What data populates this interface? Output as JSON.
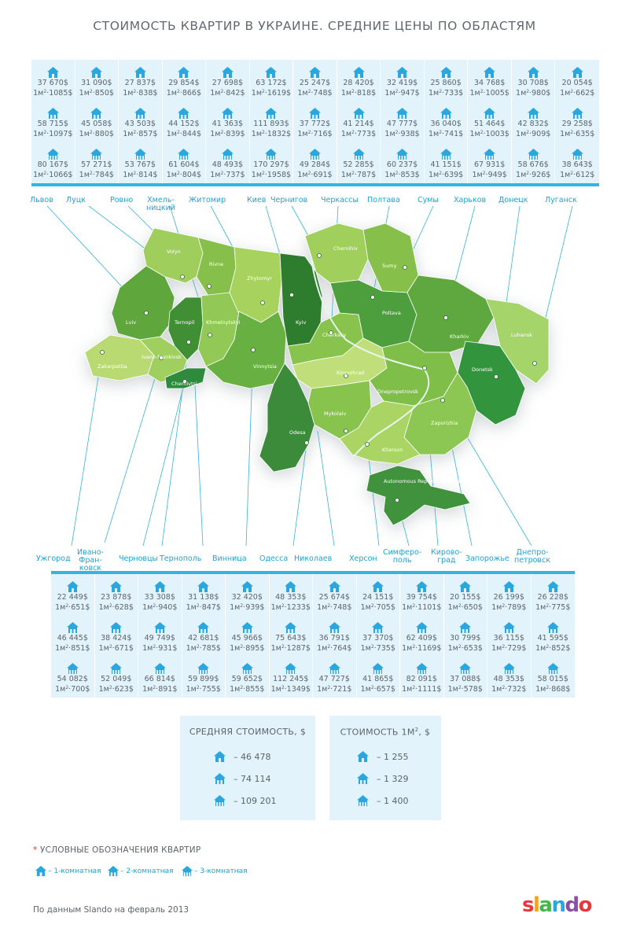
{
  "title": "СТОИМОСТЬ КВАРТИР В УКРАИНЕ. СРЕДНИЕ ЦЕНЫ ПО ОБЛАСТЯМ",
  "m2_prefix": "1м",
  "top_regions": [
    {
      "name": "Львов",
      "rooms": [
        {
          "price": "37 670$",
          "m2": "1085$"
        },
        {
          "price": "58 715$",
          "m2": "1097$"
        },
        {
          "price": "80 167$",
          "m2": "1066$"
        }
      ]
    },
    {
      "name": "Луцк",
      "rooms": [
        {
          "price": "31 090$",
          "m2": "850$"
        },
        {
          "price": "45 058$",
          "m2": "880$"
        },
        {
          "price": "57 271$",
          "m2": "784$"
        }
      ]
    },
    {
      "name": "Ровно",
      "rooms": [
        {
          "price": "27 837$",
          "m2": "838$"
        },
        {
          "price": "43 503$",
          "m2": "857$"
        },
        {
          "price": "53 767$",
          "m2": "814$"
        }
      ]
    },
    {
      "name": "Хмель-\nницкий",
      "rooms": [
        {
          "price": "29 854$",
          "m2": "866$"
        },
        {
          "price": "44 152$",
          "m2": "844$"
        },
        {
          "price": "61 604$",
          "m2": "804$"
        }
      ]
    },
    {
      "name": "Житомир",
      "rooms": [
        {
          "price": "27 698$",
          "m2": "842$"
        },
        {
          "price": "41 363$",
          "m2": "839$"
        },
        {
          "price": "48 493$",
          "m2": "737$"
        }
      ]
    },
    {
      "name": "Киев",
      "rooms": [
        {
          "price": "63 172$",
          "m2": "1619$"
        },
        {
          "price": "111 893$",
          "m2": "1832$"
        },
        {
          "price": "170 297$",
          "m2": "1958$"
        }
      ]
    },
    {
      "name": "Чернигов",
      "rooms": [
        {
          "price": "25 247$",
          "m2": "748$"
        },
        {
          "price": "37 772$",
          "m2": "716$"
        },
        {
          "price": "49 284$",
          "m2": "691$"
        }
      ]
    },
    {
      "name": "Черкассы",
      "rooms": [
        {
          "price": "28 420$",
          "m2": "818$"
        },
        {
          "price": "41 214$",
          "m2": "773$"
        },
        {
          "price": "52 285$",
          "m2": "787$"
        }
      ]
    },
    {
      "name": "Полтава",
      "rooms": [
        {
          "price": "32 419$",
          "m2": "947$"
        },
        {
          "price": "47 777$",
          "m2": "938$"
        },
        {
          "price": "60 237$",
          "m2": "853$"
        }
      ]
    },
    {
      "name": "Сумы",
      "rooms": [
        {
          "price": "25 860$",
          "m2": "733$"
        },
        {
          "price": "36 040$",
          "m2": "741$"
        },
        {
          "price": "41 151$",
          "m2": "639$"
        }
      ]
    },
    {
      "name": "Харьков",
      "rooms": [
        {
          "price": "34 768$",
          "m2": "1005$"
        },
        {
          "price": "51 464$",
          "m2": "1003$"
        },
        {
          "price": "67 931$",
          "m2": "949$"
        }
      ]
    },
    {
      "name": "Донецк",
      "rooms": [
        {
          "price": "30 708$",
          "m2": "980$"
        },
        {
          "price": "42 832$",
          "m2": "909$"
        },
        {
          "price": "58 676$",
          "m2": "926$"
        }
      ]
    },
    {
      "name": "Луганск",
      "rooms": [
        {
          "price": "20 054$",
          "m2": "662$"
        },
        {
          "price": "29 258$",
          "m2": "635$"
        },
        {
          "price": "38 643$",
          "m2": "612$"
        }
      ]
    }
  ],
  "bottom_regions": [
    {
      "name": "Ужгород",
      "rooms": [
        {
          "price": "22 449$",
          "m2": "651$"
        },
        {
          "price": "46 445$",
          "m2": "851$"
        },
        {
          "price": "54 082$",
          "m2": "700$"
        }
      ]
    },
    {
      "name": "Ивано-\nФран-\nковск",
      "rooms": [
        {
          "price": "23 878$",
          "m2": "628$"
        },
        {
          "price": "38 424$",
          "m2": "671$"
        },
        {
          "price": "52 049$",
          "m2": "623$"
        }
      ]
    },
    {
      "name": "Черновцы",
      "rooms": [
        {
          "price": "33 308$",
          "m2": "940$"
        },
        {
          "price": "49 749$",
          "m2": "931$"
        },
        {
          "price": "66 814$",
          "m2": "891$"
        }
      ]
    },
    {
      "name": "Тернополь",
      "rooms": [
        {
          "price": "31 138$",
          "m2": "847$"
        },
        {
          "price": "42 681$",
          "m2": "785$"
        },
        {
          "price": "59 899$",
          "m2": "755$"
        }
      ]
    },
    {
      "name": "Винница",
      "rooms": [
        {
          "price": "32 420$",
          "m2": "939$"
        },
        {
          "price": "45 966$",
          "m2": "895$"
        },
        {
          "price": "59 652$",
          "m2": "855$"
        }
      ]
    },
    {
      "name": "Одесса",
      "rooms": [
        {
          "price": "48 353$",
          "m2": "1233$"
        },
        {
          "price": "75 643$",
          "m2": "1287$"
        },
        {
          "price": "112 245$",
          "m2": "1349$"
        }
      ]
    },
    {
      "name": "Николаев",
      "rooms": [
        {
          "price": "25 674$",
          "m2": "748$"
        },
        {
          "price": "36 791$",
          "m2": "764$"
        },
        {
          "price": "47 727$",
          "m2": "721$"
        }
      ]
    },
    {
      "name": "Херсон",
      "rooms": [
        {
          "price": "24 151$",
          "m2": "705$"
        },
        {
          "price": "37 370$",
          "m2": "735$"
        },
        {
          "price": "41 865$",
          "m2": "657$"
        }
      ]
    },
    {
      "name": "Симферо-\nполь",
      "rooms": [
        {
          "price": "39 754$",
          "m2": "1101$"
        },
        {
          "price": "62 409$",
          "m2": "1169$"
        },
        {
          "price": "82 091$",
          "m2": "1111$"
        }
      ]
    },
    {
      "name": "Кирово-\nград",
      "rooms": [
        {
          "price": "20 155$",
          "m2": "650$"
        },
        {
          "price": "30 799$",
          "m2": "653$"
        },
        {
          "price": "37 088$",
          "m2": "578$"
        }
      ]
    },
    {
      "name": "Запорожье",
      "rooms": [
        {
          "price": "26 199$",
          "m2": "789$"
        },
        {
          "price": "36 115$",
          "m2": "729$"
        },
        {
          "price": "48 353$",
          "m2": "732$"
        }
      ]
    },
    {
      "name": "Днепро-\nпетровск",
      "rooms": [
        {
          "price": "26 228$",
          "m2": "775$"
        },
        {
          "price": "41 595$",
          "m2": "852$"
        },
        {
          "price": "58 015$",
          "m2": "868$"
        }
      ]
    }
  ],
  "map_labels": [
    "Volyn",
    "Rivne",
    "Zhytomyr",
    "Chernihiv",
    "Lviv",
    "Ternopil",
    "Khmelnytskyi",
    "Vinnytsia",
    "Kyiv",
    "Poltava",
    "Kharkiv",
    "Luhansk",
    "Donetsk",
    "Ivano-Frankivsk",
    "Odesa",
    "Mykolaiv",
    "Dnepropetrovsk",
    "Zaporizhia",
    "Kherson",
    "Autonomous Republic of Crimea",
    "Kirovohrad",
    "Sumy",
    "Cherkasy",
    "Zakarpattia",
    "Chernivtsi"
  ],
  "avg_box": {
    "title": "СРЕДНЯЯ СТОИМОСТЬ, $",
    "rows": [
      "– 46 478",
      "– 74 114",
      "– 109 201"
    ]
  },
  "m2_box": {
    "title_main": "СТОИМОСТЬ 1М",
    "title_sup": "2",
    "title_end": ", $",
    "rows": [
      "– 1 255",
      "– 1 329",
      "– 1 400"
    ]
  },
  "legend": {
    "star": "*",
    "title": "УСЛОВНЫЕ ОБОЗНАЧЕНИЯ КВАРТИР",
    "items": [
      "– 1-комнатная",
      "– 2-комнатная",
      "– 3-комнатная"
    ]
  },
  "source": "По данным Slando на февраль 2013",
  "logo": {
    "letters": [
      "s",
      "l",
      "a",
      "n",
      "d",
      "o"
    ],
    "colors": [
      "#e8383d",
      "#f6a21e",
      "#46b649",
      "#2aa7df",
      "#8b4ea0",
      "#e8383d"
    ]
  },
  "colors": {
    "accent": "#35b4e0",
    "icon": "#2aa7df",
    "panel": "#e3f3fb"
  }
}
